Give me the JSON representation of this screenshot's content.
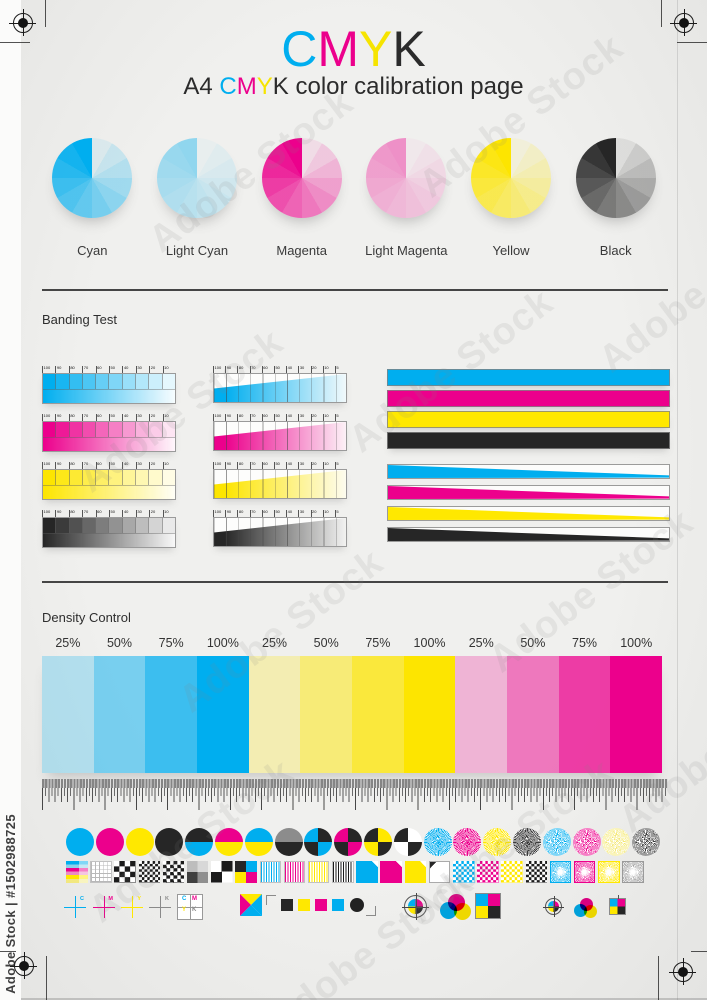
{
  "watermark": {
    "side_text": "Adobe Stock | #1502988725",
    "diagonal_text": "Adobe Stock"
  },
  "inks": {
    "cyan": "#00AEEF",
    "magenta": "#EC008C",
    "yellow": "#FFE800",
    "black": "#262626",
    "gray": "#8C8C8C",
    "white": "#FFFFFF"
  },
  "rgb": {
    "cyan": [
      0,
      174,
      239
    ],
    "magenta": [
      236,
      0,
      140
    ],
    "yellow": [
      253,
      229,
      0
    ],
    "black": [
      38,
      38,
      38
    ],
    "gray": [
      140,
      140,
      140
    ]
  },
  "header": {
    "title": [
      {
        "t": "C",
        "c": "#00AEEF"
      },
      {
        "t": "M",
        "c": "#EC008C"
      },
      {
        "t": "Y",
        "c": "#F6E400"
      },
      {
        "t": "K",
        "c": "#2B2B2B"
      }
    ],
    "subtitle": [
      {
        "t": "A4 ",
        "c": "#2B2B2B"
      },
      {
        "t": "C",
        "c": "#00AEEF"
      },
      {
        "t": "M",
        "c": "#EC008C"
      },
      {
        "t": "Y",
        "c": "#F6E400"
      },
      {
        "t": "K",
        "c": "#2B2B2B"
      },
      {
        "t": " color calibration page",
        "c": "#2B2B2B"
      }
    ]
  },
  "pies": {
    "segments": 12,
    "items": [
      {
        "label": "Cyan",
        "ink": "cyan",
        "max": 1
      },
      {
        "label": "Light Cyan",
        "ink": "cyan",
        "max": 0.4
      },
      {
        "label": "Magenta",
        "ink": "magenta",
        "max": 1
      },
      {
        "label": "Light Magenta",
        "ink": "magenta",
        "max": 0.4
      },
      {
        "label": "Yellow",
        "ink": "yellow",
        "max": 1
      },
      {
        "label": "Black",
        "ink": "black",
        "max": 1
      }
    ]
  },
  "banding": {
    "label": "Banding Test",
    "step_values": [
      "100",
      "90",
      "80",
      "70",
      "60",
      "50",
      "40",
      "30",
      "20",
      "10"
    ],
    "wedge_values": [
      "100",
      "90",
      "80",
      "70",
      "60",
      "50",
      "40",
      "30",
      "20",
      "10",
      "5"
    ],
    "rows": [
      "cyan",
      "magenta",
      "yellow",
      "black"
    ]
  },
  "density": {
    "label": "Density Control",
    "groups": [
      {
        "ink": "cyan",
        "percents": [
          "25%",
          "50%",
          "75%",
          "100%"
        ]
      },
      {
        "ink": "yellow",
        "percents": [
          "25%",
          "50%",
          "75%",
          "100%"
        ]
      },
      {
        "ink": "magenta",
        "percents": [
          "25%",
          "50%",
          "75%",
          "100%"
        ]
      }
    ]
  },
  "test_circles": [
    {
      "type": "solid",
      "ink": "cyan"
    },
    {
      "type": "solid",
      "ink": "magenta"
    },
    {
      "type": "solid",
      "ink": "yellow"
    },
    {
      "type": "solid",
      "ink": "black"
    },
    {
      "type": "half",
      "top": "black",
      "bottom": "cyan"
    },
    {
      "type": "half",
      "top": "magenta",
      "bottom": "yellow"
    },
    {
      "type": "half",
      "top": "cyan",
      "bottom": "yellow"
    },
    {
      "type": "half",
      "top": "gray",
      "bottom": "black"
    },
    {
      "type": "quad",
      "ink": "cyan"
    },
    {
      "type": "quad",
      "ink": "magenta"
    },
    {
      "type": "quad-inv",
      "ink": "yellow"
    },
    {
      "type": "quad-inv",
      "ink": "white"
    },
    {
      "type": "burst",
      "ink": "cyan"
    },
    {
      "type": "burst",
      "ink": "magenta"
    },
    {
      "type": "burst",
      "ink": "yellow"
    },
    {
      "type": "burst",
      "ink": "black"
    },
    {
      "type": "burst-fine",
      "ink": "cyan"
    },
    {
      "type": "burst-fine",
      "ink": "magenta"
    },
    {
      "type": "burst-pale",
      "ink": "yellow"
    },
    {
      "type": "burst-fine",
      "ink": "black"
    }
  ],
  "test_squares": [
    {
      "type": "cmy-stripes"
    },
    {
      "type": "grid"
    },
    {
      "type": "checker",
      "n": 4
    },
    {
      "type": "checker",
      "n": 8
    },
    {
      "type": "checker",
      "n": 6
    },
    {
      "type": "gray-quads"
    },
    {
      "type": "checker",
      "n": 2
    },
    {
      "type": "cmyk-quads"
    },
    {
      "type": "vstripes",
      "ink": "cyan"
    },
    {
      "type": "vstripes",
      "ink": "magenta"
    },
    {
      "type": "vstripes",
      "ink": "yellow"
    },
    {
      "type": "vstripes",
      "ink": "black"
    },
    {
      "type": "fold",
      "ink": "cyan"
    },
    {
      "type": "fold",
      "ink": "magenta"
    },
    {
      "type": "fold",
      "ink": "yellow"
    },
    {
      "type": "fold-dark",
      "ink": "white"
    },
    {
      "type": "checker-ink",
      "ink": "cyan"
    },
    {
      "type": "checker-ink",
      "ink": "magenta"
    },
    {
      "type": "checker-ink",
      "ink": "yellow"
    },
    {
      "type": "checker-ink",
      "ink": "black"
    },
    {
      "type": "burst-sq",
      "ink": "cyan"
    },
    {
      "type": "burst-sq",
      "ink": "magenta"
    },
    {
      "type": "burst-sq",
      "ink": "yellow"
    },
    {
      "type": "burst-sq",
      "ink": "gray"
    }
  ],
  "printer_marks": {
    "crosses": [
      {
        "letter": "C",
        "ink": "cyan"
      },
      {
        "letter": "M",
        "ink": "magenta"
      },
      {
        "letter": "Y",
        "ink": "yellow"
      },
      {
        "letter": "K",
        "ink": "gray"
      }
    ],
    "grid_letters": [
      {
        "letter": "C",
        "ink": "cyan"
      },
      {
        "letter": "M",
        "ink": "magenta"
      },
      {
        "letter": "Y",
        "ink": "yellow"
      },
      {
        "letter": "K",
        "ink": "gray"
      }
    ]
  }
}
